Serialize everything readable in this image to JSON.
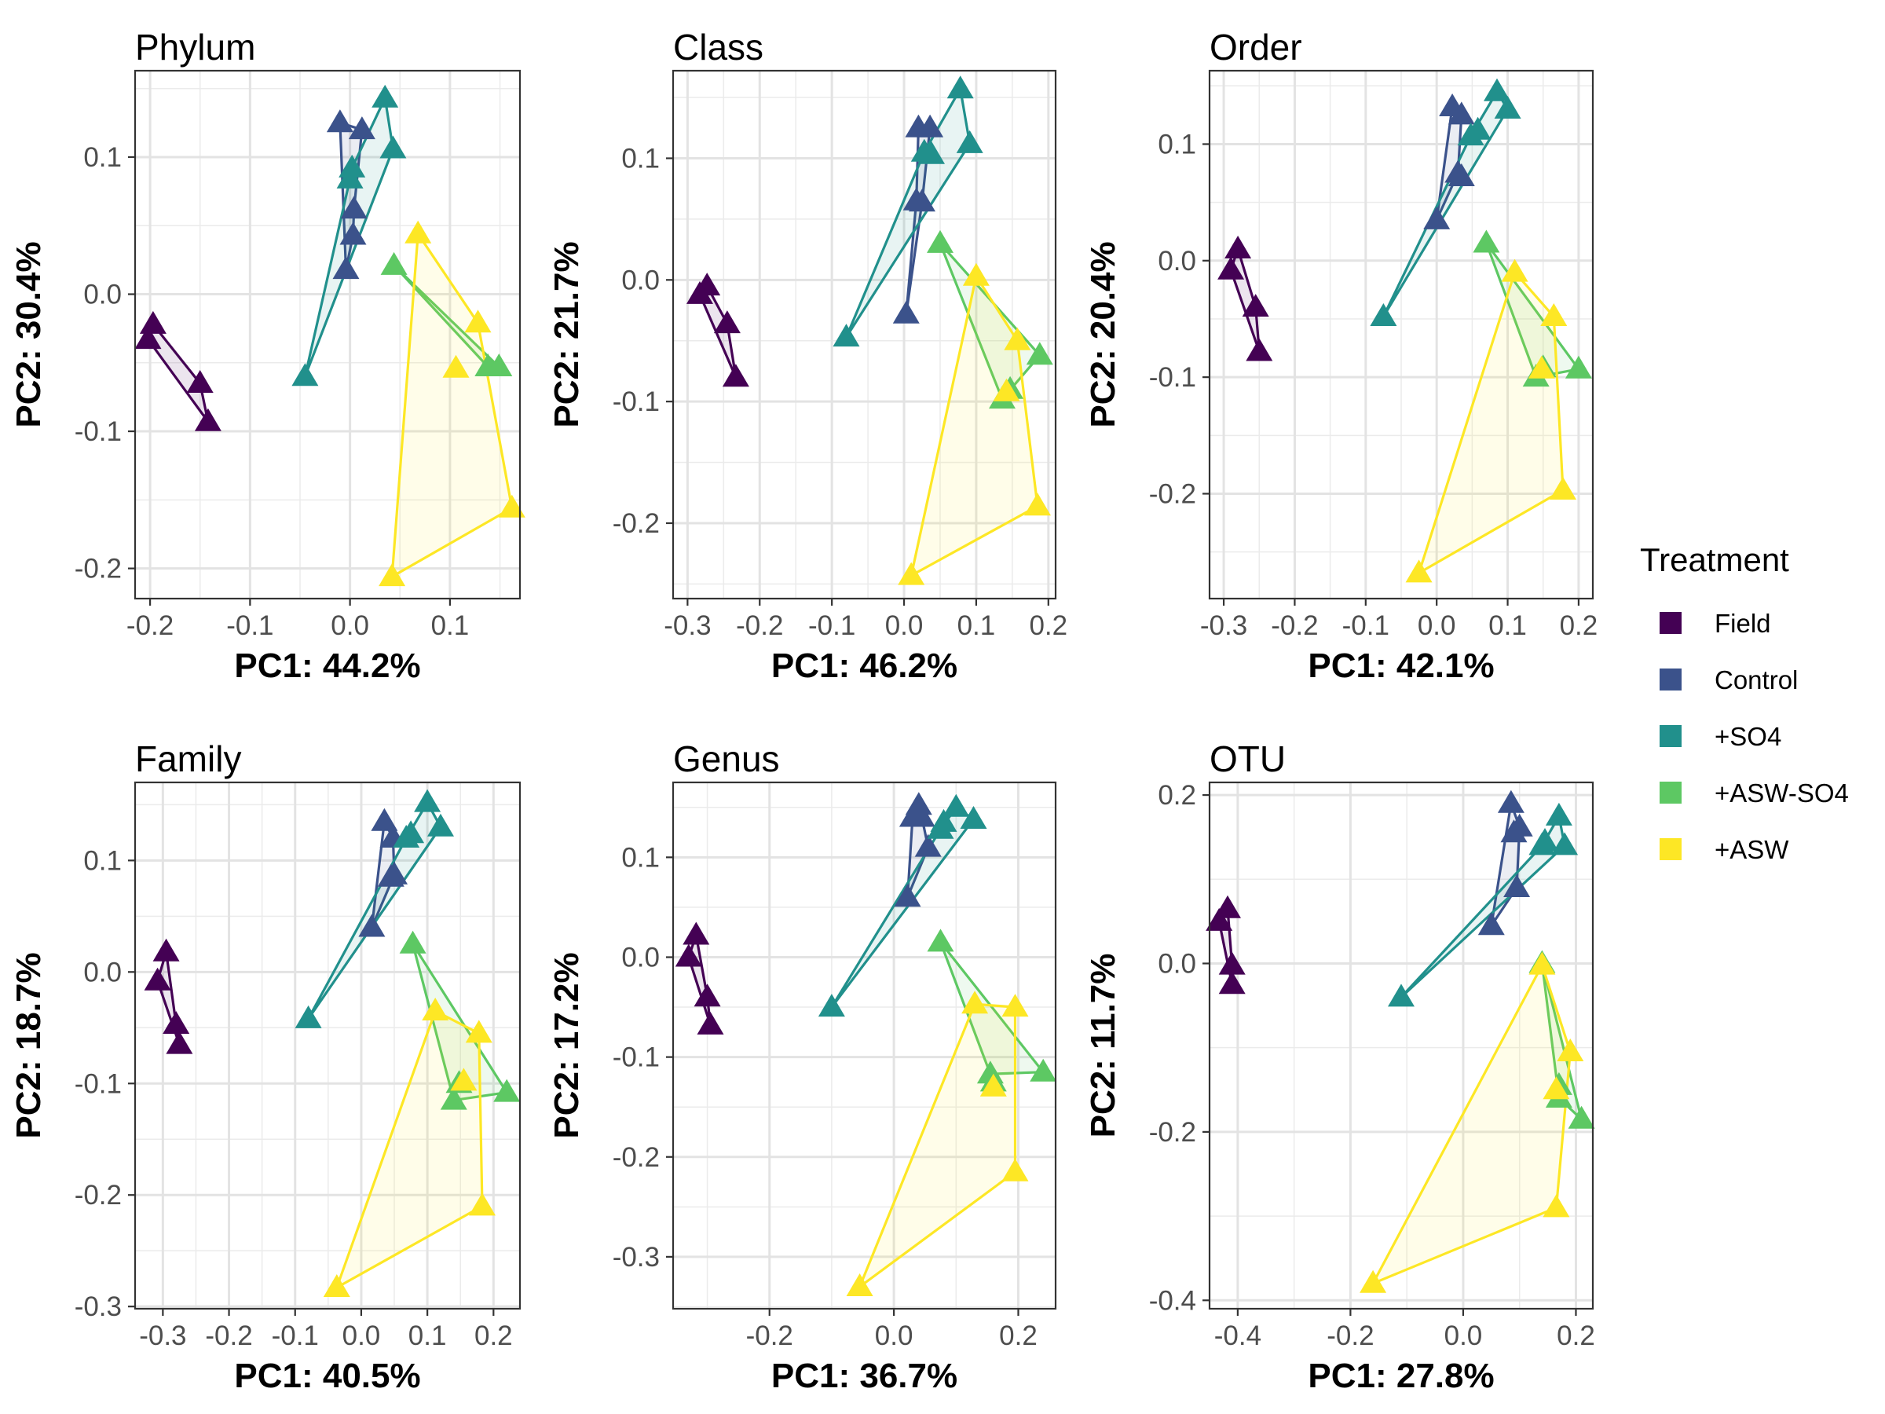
{
  "legend": {
    "title": "Treatment",
    "items": [
      {
        "label": "Field",
        "color": "#440154"
      },
      {
        "label": "Control",
        "color": "#3B528B"
      },
      {
        "label": "+SO4",
        "color": "#21908C"
      },
      {
        "label": "+ASW-SO4",
        "color": "#5DC863"
      },
      {
        "label": "+ASW",
        "color": "#FDE725"
      }
    ]
  },
  "chart_data": [
    {
      "type": "scatter",
      "title": "Phylum",
      "xlabel": "PC1: 44.2%",
      "ylabel": "PC2: 30.4%",
      "xlim": [
        -0.215,
        0.17
      ],
      "ylim": [
        -0.222,
        0.163
      ],
      "xticks": [
        -0.2,
        -0.1,
        0.0,
        0.1
      ],
      "xtick_labels": [
        "-0.2",
        "-0.1",
        "0.0",
        "0.1"
      ],
      "yticks": [
        -0.2,
        -0.1,
        0.0,
        0.1
      ],
      "ytick_labels": [
        "-0.2",
        "-0.1",
        "0.0",
        "0.1"
      ],
      "series": [
        {
          "name": "Field",
          "points": [
            [
              -0.197,
              -0.022
            ],
            [
              -0.202,
              -0.033
            ],
            [
              -0.15,
              -0.065
            ],
            [
              -0.142,
              -0.093
            ]
          ],
          "hull": [
            0,
            1,
            3,
            2
          ]
        },
        {
          "name": "Control",
          "points": [
            [
              -0.01,
              0.125
            ],
            [
              0.012,
              0.12
            ],
            [
              0.004,
              0.062
            ],
            [
              0.003,
              0.043
            ],
            [
              -0.004,
              0.018
            ]
          ],
          "hull": [
            0,
            1,
            2,
            3,
            4
          ]
        },
        {
          "name": "+SO4",
          "points": [
            [
              0.035,
              0.143
            ],
            [
              0.043,
              0.106
            ],
            [
              0.002,
              0.092
            ],
            [
              0.0,
              0.084
            ],
            [
              -0.045,
              -0.06
            ]
          ],
          "hull": [
            0,
            1,
            4,
            3,
            2
          ]
        },
        {
          "name": "+ASW-SO4",
          "points": [
            [
              0.044,
              0.021
            ],
            [
              0.138,
              -0.053
            ],
            [
              0.149,
              -0.053
            ]
          ],
          "hull": [
            0,
            2,
            1
          ]
        },
        {
          "name": "+ASW",
          "points": [
            [
              0.068,
              0.044
            ],
            [
              0.128,
              -0.021
            ],
            [
              0.106,
              -0.054
            ],
            [
              0.162,
              -0.156
            ],
            [
              0.042,
              -0.206
            ]
          ],
          "hull": [
            0,
            1,
            3,
            4
          ]
        }
      ]
    },
    {
      "type": "scatter",
      "title": "Class",
      "xlabel": "PC1: 46.2%",
      "ylabel": "PC2: 21.7%",
      "xlim": [
        -0.32,
        0.21
      ],
      "ylim": [
        -0.262,
        0.172
      ],
      "xticks": [
        -0.3,
        -0.2,
        -0.1,
        0.0,
        0.1,
        0.2
      ],
      "xtick_labels": [
        "-0.3",
        "-0.2",
        "-0.1",
        "0.0",
        "0.1",
        "0.2"
      ],
      "yticks": [
        -0.2,
        -0.1,
        0.0,
        0.1
      ],
      "ytick_labels": [
        "-0.2",
        "-0.1",
        "0.0",
        "0.1"
      ],
      "series": [
        {
          "name": "Field",
          "points": [
            [
              -0.273,
              -0.005
            ],
            [
              -0.283,
              -0.012
            ],
            [
              -0.245,
              -0.036
            ],
            [
              -0.233,
              -0.08
            ]
          ],
          "hull": [
            0,
            1,
            3,
            2
          ]
        },
        {
          "name": "Control",
          "points": [
            [
              0.02,
              0.125
            ],
            [
              0.036,
              0.125
            ],
            [
              0.025,
              0.064
            ],
            [
              0.017,
              0.065
            ],
            [
              0.003,
              -0.028
            ]
          ],
          "hull": [
            0,
            1,
            2,
            4,
            3
          ]
        },
        {
          "name": "+SO4",
          "points": [
            [
              0.078,
              0.157
            ],
            [
              0.091,
              0.112
            ],
            [
              0.038,
              0.103
            ],
            [
              0.028,
              0.105
            ],
            [
              -0.08,
              -0.047
            ]
          ],
          "hull": [
            0,
            1,
            4,
            3
          ]
        },
        {
          "name": "+ASW-SO4",
          "points": [
            [
              0.05,
              0.03
            ],
            [
              0.188,
              -0.062
            ],
            [
              0.136,
              -0.098
            ],
            [
              0.147,
              -0.09
            ]
          ],
          "hull": [
            0,
            1,
            2
          ]
        },
        {
          "name": "+ASW",
          "points": [
            [
              0.1,
              0.003
            ],
            [
              0.157,
              -0.05
            ],
            [
              0.142,
              -0.092
            ],
            [
              0.185,
              -0.186
            ],
            [
              0.01,
              -0.243
            ]
          ],
          "hull": [
            0,
            1,
            3,
            4
          ]
        }
      ]
    },
    {
      "type": "scatter",
      "title": "Order",
      "xlabel": "PC1: 42.1%",
      "ylabel": "PC2: 20.4%",
      "xlim": [
        -0.32,
        0.22
      ],
      "ylim": [
        -0.29,
        0.163
      ],
      "xticks": [
        -0.3,
        -0.2,
        -0.1,
        0.0,
        0.1,
        0.2
      ],
      "xtick_labels": [
        "-0.3",
        "-0.2",
        "-0.1",
        "0.0",
        "0.1",
        "0.2"
      ],
      "yticks": [
        -0.2,
        -0.1,
        0.0,
        0.1
      ],
      "ytick_labels": [
        "-0.2",
        "-0.1",
        "0.0",
        "0.1"
      ],
      "series": [
        {
          "name": "Field",
          "points": [
            [
              -0.28,
              0.01
            ],
            [
              -0.29,
              -0.008
            ],
            [
              -0.255,
              -0.04
            ],
            [
              -0.25,
              -0.078
            ]
          ],
          "hull": [
            0,
            1,
            3,
            2
          ]
        },
        {
          "name": "Control",
          "points": [
            [
              0.022,
              0.132
            ],
            [
              0.035,
              0.125
            ],
            [
              0.03,
              0.075
            ],
            [
              0.035,
              0.072
            ],
            [
              0.0,
              0.035
            ]
          ],
          "hull": [
            0,
            1,
            2,
            4
          ]
        },
        {
          "name": "+SO4",
          "points": [
            [
              0.085,
              0.145
            ],
            [
              0.1,
              0.13
            ],
            [
              0.058,
              0.112
            ],
            [
              0.048,
              0.107
            ],
            [
              -0.075,
              -0.048
            ]
          ],
          "hull": [
            0,
            1,
            4,
            3
          ]
        },
        {
          "name": "+ASW-SO4",
          "points": [
            [
              0.07,
              0.015
            ],
            [
              0.2,
              -0.093
            ],
            [
              0.14,
              -0.1
            ],
            [
              0.15,
              -0.092
            ]
          ],
          "hull": [
            0,
            1,
            2
          ]
        },
        {
          "name": "+ASW",
          "points": [
            [
              0.11,
              -0.01
            ],
            [
              0.165,
              -0.048
            ],
            [
              0.148,
              -0.093
            ],
            [
              0.178,
              -0.197
            ],
            [
              -0.025,
              -0.268
            ]
          ],
          "hull": [
            0,
            1,
            3,
            4
          ]
        }
      ]
    },
    {
      "type": "scatter",
      "title": "Family",
      "xlabel": "PC1: 40.5%",
      "ylabel": "PC2: 18.7%",
      "xlim": [
        -0.342,
        0.24
      ],
      "ylim": [
        -0.302,
        0.17
      ],
      "xticks": [
        -0.3,
        -0.2,
        -0.1,
        0.0,
        0.1,
        0.2
      ],
      "xtick_labels": [
        "-0.3",
        "-0.2",
        "-0.1",
        "0.0",
        "0.1",
        "0.2"
      ],
      "yticks": [
        -0.3,
        -0.2,
        -0.1,
        0.0,
        0.1
      ],
      "ytick_labels": [
        "-0.3",
        "-0.2",
        "-0.1",
        "0.0",
        "0.1"
      ],
      "series": [
        {
          "name": "Field",
          "points": [
            [
              -0.295,
              0.018
            ],
            [
              -0.308,
              -0.008
            ],
            [
              -0.28,
              -0.047
            ],
            [
              -0.275,
              -0.065
            ]
          ],
          "hull": [
            0,
            1,
            3,
            2
          ]
        },
        {
          "name": "Control",
          "points": [
            [
              0.035,
              0.135
            ],
            [
              0.048,
              0.12
            ],
            [
              0.05,
              0.087
            ],
            [
              0.045,
              0.085
            ],
            [
              0.016,
              0.04
            ]
          ],
          "hull": [
            0,
            1,
            2,
            4
          ]
        },
        {
          "name": "+SO4",
          "points": [
            [
              0.1,
              0.152
            ],
            [
              0.12,
              0.13
            ],
            [
              0.068,
              0.12
            ],
            [
              0.075,
              0.124
            ],
            [
              -0.08,
              -0.042
            ]
          ],
          "hull": [
            0,
            1,
            4,
            2
          ]
        },
        {
          "name": "+ASW-SO4",
          "points": [
            [
              0.078,
              0.025
            ],
            [
              0.22,
              -0.108
            ],
            [
              0.14,
              -0.115
            ],
            [
              0.148,
              -0.1
            ]
          ],
          "hull": [
            0,
            1,
            2
          ]
        },
        {
          "name": "+ASW",
          "points": [
            [
              0.112,
              -0.035
            ],
            [
              0.178,
              -0.055
            ],
            [
              0.155,
              -0.098
            ],
            [
              0.183,
              -0.21
            ],
            [
              -0.037,
              -0.283
            ]
          ],
          "hull": [
            0,
            1,
            3,
            4
          ]
        }
      ]
    },
    {
      "type": "scatter",
      "title": "Genus",
      "xlabel": "PC1: 36.7%",
      "ylabel": "PC2: 17.2%",
      "xlim": [
        -0.355,
        0.26
      ],
      "ylim": [
        -0.352,
        0.175
      ],
      "xticks": [
        -0.2,
        0.0,
        0.2
      ],
      "xtick_labels": [
        "-0.2",
        "0.0",
        "0.2"
      ],
      "yticks": [
        -0.3,
        -0.2,
        -0.1,
        0.0,
        0.1
      ],
      "ytick_labels": [
        "-0.3",
        "-0.2",
        "-0.1",
        "0.0",
        "0.1"
      ],
      "series": [
        {
          "name": "Field",
          "points": [
            [
              -0.318,
              0.022
            ],
            [
              -0.33,
              0.0
            ],
            [
              -0.3,
              -0.04
            ],
            [
              -0.295,
              -0.068
            ]
          ],
          "hull": [
            0,
            1,
            3,
            2
          ]
        },
        {
          "name": "Control",
          "points": [
            [
              0.04,
              0.152
            ],
            [
              0.045,
              0.14
            ],
            [
              0.03,
              0.14
            ],
            [
              0.055,
              0.11
            ],
            [
              0.022,
              0.06
            ]
          ],
          "hull": [
            0,
            1,
            3,
            4,
            2
          ]
        },
        {
          "name": "+SO4",
          "points": [
            [
              0.1,
              0.15
            ],
            [
              0.128,
              0.138
            ],
            [
              0.075,
              0.128
            ],
            [
              0.08,
              0.135
            ],
            [
              -0.1,
              -0.05
            ]
          ],
          "hull": [
            0,
            1,
            4,
            2
          ]
        },
        {
          "name": "+ASW-SO4",
          "points": [
            [
              0.075,
              0.015
            ],
            [
              0.24,
              -0.115
            ],
            [
              0.155,
              -0.117
            ],
            [
              0.16,
              -0.125
            ]
          ],
          "hull": [
            0,
            1,
            2
          ]
        },
        {
          "name": "+ASW",
          "points": [
            [
              0.13,
              -0.047
            ],
            [
              0.195,
              -0.05
            ],
            [
              0.16,
              -0.13
            ],
            [
              0.195,
              -0.215
            ],
            [
              -0.055,
              -0.33
            ]
          ],
          "hull": [
            0,
            1,
            3,
            4
          ]
        }
      ]
    },
    {
      "type": "scatter",
      "title": "OTU",
      "xlabel": "PC1: 27.8%",
      "ylabel": "PC2: 11.7%",
      "xlim": [
        -0.45,
        0.23
      ],
      "ylim": [
        -0.41,
        0.215
      ],
      "xticks": [
        -0.4,
        -0.2,
        0.0,
        0.2
      ],
      "xtick_labels": [
        "-0.4",
        "-0.2",
        "0.0",
        "0.2"
      ],
      "yticks": [
        -0.4,
        -0.2,
        0.0,
        0.2
      ],
      "ytick_labels": [
        "-0.4",
        "-0.2",
        "0.0",
        "0.2"
      ],
      "series": [
        {
          "name": "Field",
          "points": [
            [
              -0.418,
              0.065
            ],
            [
              -0.433,
              0.05
            ],
            [
              -0.41,
              -0.002
            ],
            [
              -0.41,
              -0.025
            ]
          ],
          "hull": [
            0,
            1,
            3,
            2
          ]
        },
        {
          "name": "Control",
          "points": [
            [
              0.085,
              0.19
            ],
            [
              0.1,
              0.162
            ],
            [
              0.09,
              0.155
            ],
            [
              0.095,
              0.09
            ],
            [
              0.05,
              0.045
            ]
          ],
          "hull": [
            0,
            1,
            3,
            4
          ]
        },
        {
          "name": "+SO4",
          "points": [
            [
              0.17,
              0.175
            ],
            [
              0.18,
              0.14
            ],
            [
              0.14,
              0.14
            ],
            [
              0.145,
              0.145
            ],
            [
              -0.11,
              -0.04
            ]
          ],
          "hull": [
            0,
            1,
            4,
            2
          ]
        },
        {
          "name": "+ASW-SO4",
          "points": [
            [
              0.14,
              0.0
            ],
            [
              0.21,
              -0.185
            ],
            [
              0.17,
              -0.16
            ],
            [
              0.17,
              -0.145
            ]
          ],
          "hull": [
            0,
            1,
            2
          ]
        },
        {
          "name": "+ASW",
          "points": [
            [
              0.14,
              -0.002
            ],
            [
              0.19,
              -0.105
            ],
            [
              0.165,
              -0.15
            ],
            [
              0.165,
              -0.29
            ],
            [
              -0.16,
              -0.38
            ]
          ],
          "hull": [
            0,
            1,
            3,
            4
          ]
        }
      ]
    }
  ]
}
